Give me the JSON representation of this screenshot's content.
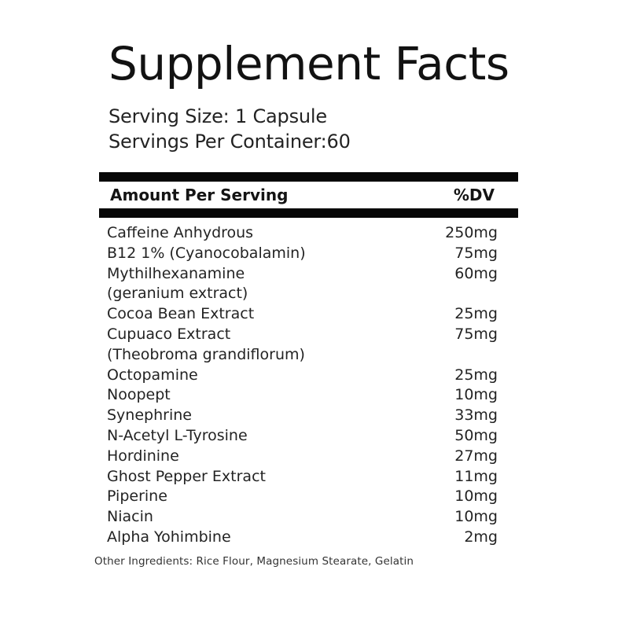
{
  "label": {
    "title": "Supplement Facts",
    "serving": {
      "size_line": "Serving Size: 1 Capsule",
      "container_line": "Servings Per Container:60"
    },
    "table": {
      "header": {
        "amount_col": "Amount Per Serving",
        "dv_col": "%DV"
      },
      "rows": [
        {
          "name": "Caffeine Anhydrous",
          "amount": "250mg"
        },
        {
          "name": "B12 1% (Cyanocobalamin)",
          "amount": "75mg"
        },
        {
          "name": "Mythilhexanamine",
          "amount": "60mg"
        },
        {
          "name": "(geranium extract)",
          "amount": ""
        },
        {
          "name": "Cocoa Bean Extract",
          "amount": "25mg"
        },
        {
          "name": "Cupuaco Extract",
          "amount": "75mg"
        },
        {
          "name": "(Theobroma grandiflorum)",
          "amount": ""
        },
        {
          "name": "Octopamine",
          "amount": "25mg"
        },
        {
          "name": "Noopept",
          "amount": "10mg"
        },
        {
          "name": "Synephrine",
          "amount": "33mg"
        },
        {
          "name": "N-Acetyl L-Tyrosine",
          "amount": "50mg"
        },
        {
          "name": "Hordinine",
          "amount": "27mg"
        },
        {
          "name": "Ghost Pepper Extract",
          "amount": "11mg"
        },
        {
          "name": "Piperine",
          "amount": "10mg"
        },
        {
          "name": "Niacin",
          "amount": "10mg"
        },
        {
          "name": "Alpha Yohimbine",
          "amount": "2mg"
        }
      ]
    },
    "footer": {
      "other_ingredients": "Other Ingredients: Rice Flour, Magnesium Stearate, Gelatin"
    },
    "colors": {
      "background": "#ffffff",
      "text": "#1e1e1e",
      "bar": "#070707"
    }
  }
}
